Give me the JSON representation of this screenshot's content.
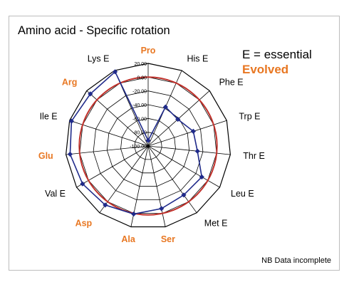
{
  "title": "Amino acid - Specific rotation",
  "legend": {
    "essential_label": "E = essential",
    "evolved_label": "Evolved",
    "evolved_color": "#e87722"
  },
  "note": "NB Data incomplete",
  "chart_data": {
    "type": "radar",
    "title": "Amino acid - Specific rotation",
    "categories": [
      "Pro",
      "His E",
      "Phe E",
      "Trp E",
      "Thr E",
      "Leu E",
      "Met E",
      "Ser",
      "Ala",
      "Asp",
      "Val E",
      "Glu",
      "Ile E",
      "Arg",
      "Lys E"
    ],
    "category_colors": [
      "#e87722",
      "#000000",
      "#000000",
      "#000000",
      "#000000",
      "#000000",
      "#000000",
      "#e87722",
      "#e87722",
      "#e87722",
      "#000000",
      "#e87722",
      "#000000",
      "#e87722",
      "#000000"
    ],
    "rlim": [
      -100,
      20
    ],
    "tick_labels": [
      "20.00",
      "0.00",
      "-20.00",
      "-40.00",
      "-60.00",
      "-80.00",
      "-100.00"
    ],
    "tick_values": [
      20,
      0,
      -20,
      -40,
      -60,
      -80,
      -100
    ],
    "series": [
      {
        "values": [
          -92,
          -38,
          -42,
          -31,
          -28,
          -10,
          -12,
          -7,
          1,
          6,
          10,
          14,
          17,
          13,
          18
        ],
        "color": "#1f2a8a",
        "marker": "diamond"
      }
    ],
    "reference_circle": {
      "value": 0,
      "color": "#c0312b"
    },
    "grid": true
  }
}
